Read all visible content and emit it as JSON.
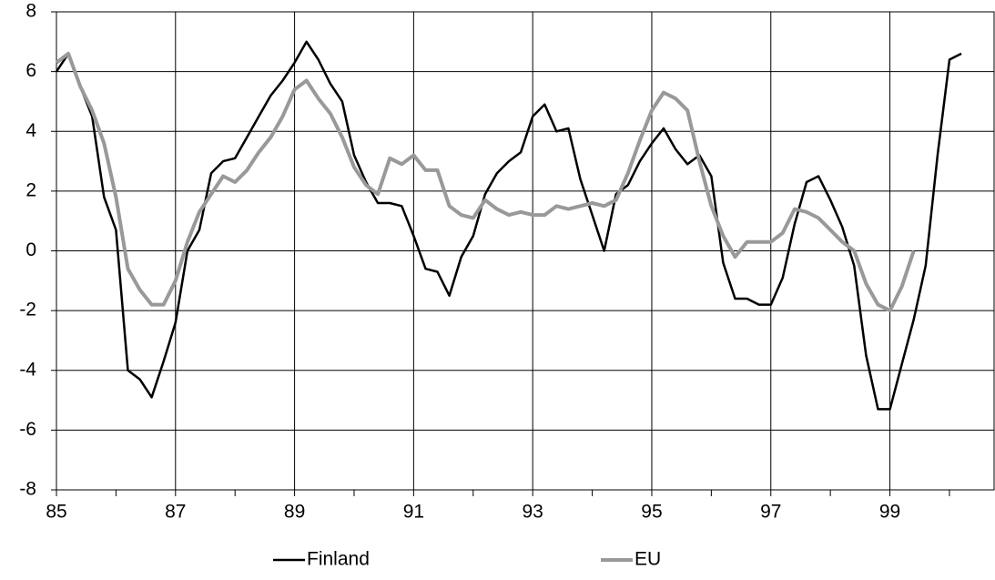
{
  "chart_data": {
    "type": "line",
    "x": [
      85.0,
      85.2,
      85.4,
      85.6,
      85.8,
      86.0,
      86.2,
      86.4,
      86.6,
      86.8,
      87.0,
      87.2,
      87.4,
      87.6,
      87.8,
      88.0,
      88.2,
      88.4,
      88.6,
      88.8,
      89.0,
      89.2,
      89.4,
      89.6,
      89.8,
      90.0,
      90.2,
      90.4,
      90.6,
      90.8,
      91.0,
      91.2,
      91.4,
      91.6,
      91.8,
      92.0,
      92.2,
      92.4,
      92.6,
      92.8,
      93.0,
      93.2,
      93.4,
      93.6,
      93.8,
      94.0,
      94.2,
      94.4,
      94.6,
      94.8,
      95.0,
      95.2,
      95.4,
      95.6,
      95.8,
      96.0,
      96.2,
      96.4,
      96.6,
      96.8,
      97.0,
      97.2,
      97.4,
      97.6,
      97.8,
      98.0,
      98.2,
      98.4,
      98.6,
      98.8,
      99.0,
      99.2,
      99.4,
      99.6,
      99.8,
      100.0,
      100.2
    ],
    "series": [
      {
        "name": "Finland",
        "color": "#000000",
        "width": 2.5,
        "values": [
          6.0,
          6.6,
          5.5,
          4.5,
          1.8,
          0.7,
          -4.0,
          -4.3,
          -4.9,
          -3.7,
          -2.4,
          0.0,
          0.7,
          2.6,
          3.0,
          3.1,
          3.8,
          4.5,
          5.2,
          5.7,
          6.3,
          7.0,
          6.4,
          5.6,
          5.0,
          3.2,
          2.3,
          1.6,
          1.6,
          1.5,
          0.5,
          -0.6,
          -0.7,
          -1.5,
          -0.2,
          0.5,
          1.9,
          2.6,
          3.0,
          3.3,
          4.5,
          4.9,
          4.0,
          4.1,
          2.4,
          1.2,
          0.0,
          1.9,
          2.2,
          3.0,
          3.6,
          4.1,
          3.4,
          2.9,
          3.2,
          2.5,
          -0.4,
          -1.6,
          -1.6,
          -1.8,
          -1.8,
          -0.9,
          0.9,
          2.3,
          2.5,
          1.7,
          0.8,
          -0.5,
          -3.5,
          -5.3,
          -5.3,
          -3.8,
          -2.3,
          -0.5,
          3.2,
          6.4,
          6.6
        ]
      },
      {
        "name": "EU",
        "color": "#999999",
        "width": 4,
        "values": [
          6.3,
          6.6,
          5.5,
          4.7,
          3.6,
          1.8,
          -0.6,
          -1.3,
          -1.8,
          -1.8,
          -1.0,
          0.3,
          1.3,
          1.9,
          2.5,
          2.3,
          2.7,
          3.3,
          3.8,
          4.5,
          5.4,
          5.7,
          5.1,
          4.6,
          3.8,
          2.8,
          2.2,
          1.9,
          3.1,
          2.9,
          3.2,
          2.7,
          2.7,
          1.5,
          1.2,
          1.1,
          1.7,
          1.4,
          1.2,
          1.3,
          1.2,
          1.2,
          1.5,
          1.4,
          1.5,
          1.6,
          1.5,
          1.7,
          2.6,
          3.7,
          4.7,
          5.3,
          5.1,
          4.7,
          3.0,
          1.5,
          0.5,
          -0.2,
          0.3,
          0.3,
          0.3,
          0.6,
          1.4,
          1.3,
          1.1,
          0.7,
          0.3,
          0.0,
          -1.1,
          -1.8,
          -2.0,
          -1.2,
          0.0,
          null,
          null,
          null,
          null
        ]
      }
    ],
    "xlim": [
      85,
      100.75
    ],
    "xticks": [
      85,
      87,
      89,
      91,
      93,
      95,
      97,
      99
    ],
    "xminor_ticks": [
      86,
      88,
      90,
      92,
      94,
      96,
      98,
      100
    ],
    "ylim": [
      -8,
      8
    ],
    "yticks": [
      -8,
      -6,
      -4,
      -2,
      0,
      2,
      4,
      6,
      8
    ],
    "grid": true,
    "legend": "bottom"
  }
}
